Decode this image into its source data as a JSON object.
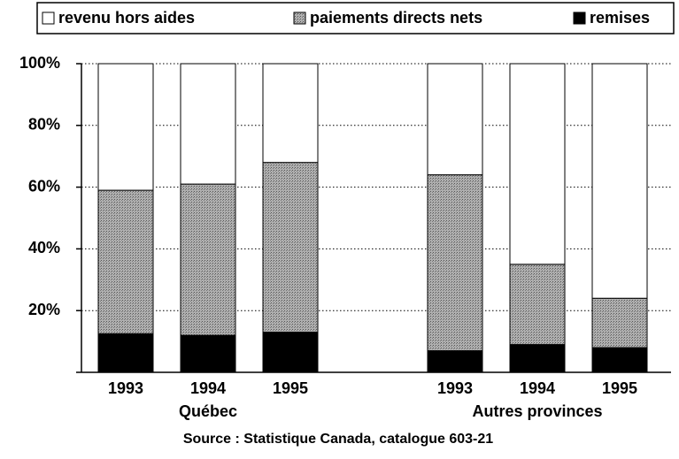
{
  "chart_data": {
    "type": "stacked_bar",
    "groups": [
      {
        "name": "Québec",
        "categories": [
          "1993",
          "1994",
          "1995"
        ]
      },
      {
        "name": "Autres provinces",
        "categories": [
          "1993",
          "1994",
          "1995"
        ]
      }
    ],
    "series": [
      {
        "name": "revenu hors aides",
        "color": "#ffffff",
        "values": [
          41,
          39,
          32,
          36,
          65,
          76
        ]
      },
      {
        "name": "paiements directs nets",
        "color": "#9a9a9a",
        "values": [
          46.5,
          49,
          55,
          57,
          26,
          16
        ]
      },
      {
        "name": "remises",
        "color": "#000000",
        "values": [
          12.5,
          12,
          13,
          7,
          9,
          8
        ]
      }
    ],
    "ylim": [
      0,
      100
    ],
    "yticks": [
      {
        "value": 20,
        "label": "20%"
      },
      {
        "value": 40,
        "label": "40%"
      },
      {
        "value": 60,
        "label": "60%"
      },
      {
        "value": 80,
        "label": "80%"
      },
      {
        "value": 100,
        "label": "100%"
      }
    ],
    "grid": true,
    "legend": "top",
    "note": "Source : Statistique Canada, catalogue 603-21"
  }
}
